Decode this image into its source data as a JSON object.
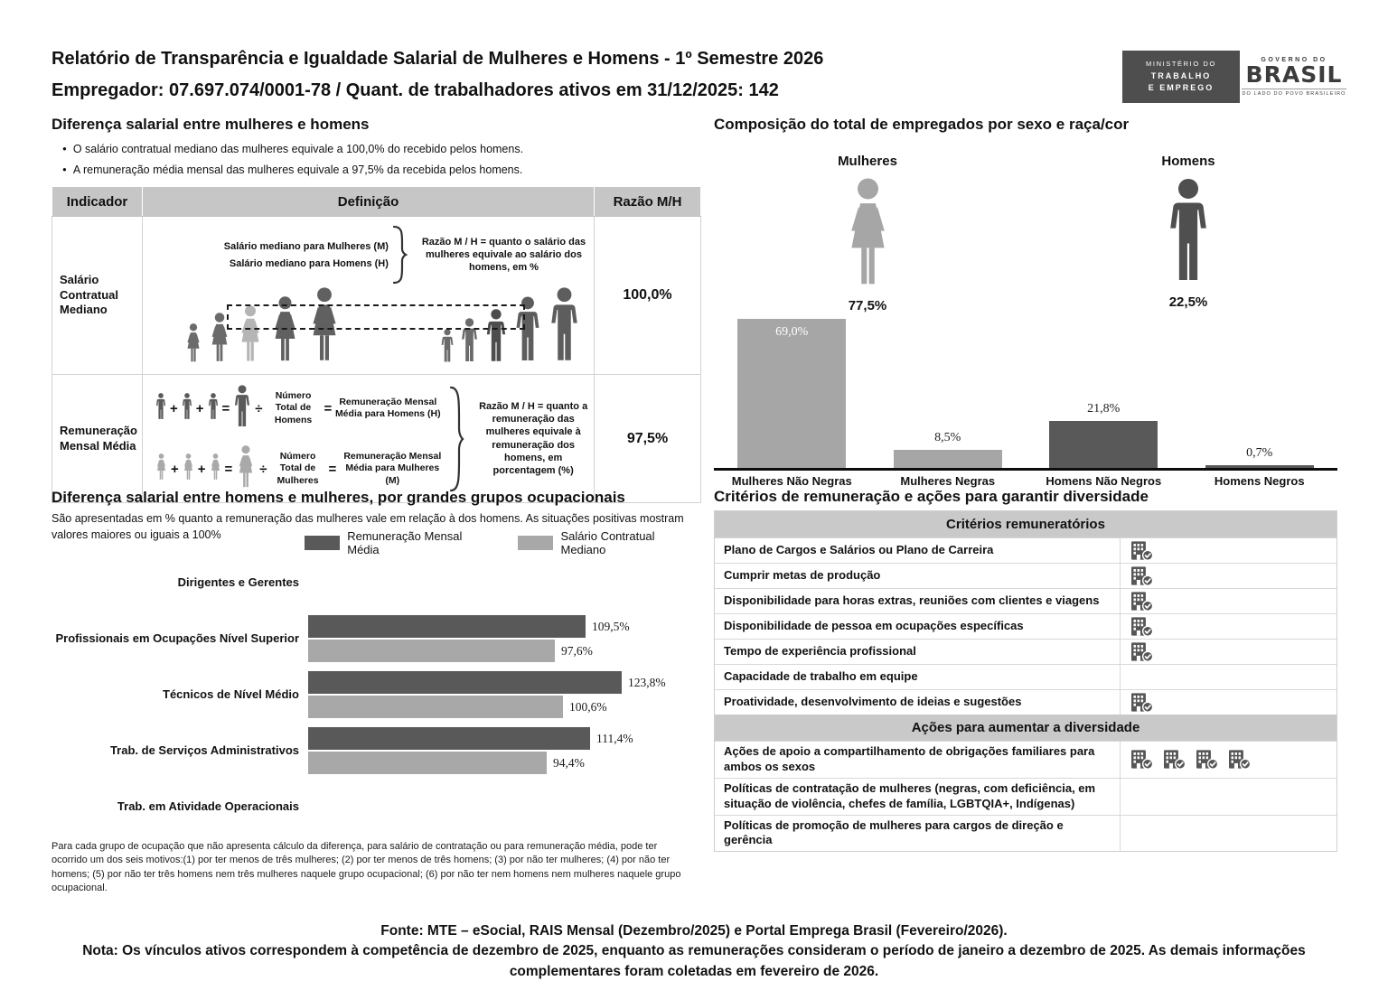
{
  "header": {
    "title_line1": "Relatório de Transparência e Igualdade Salarial de Mulheres e Homens - 1º Semestre 2026",
    "title_line2": "Empregador: 07.697.074/0001-78 / Quant. de trabalhadores ativos em 31/12/2025: 142",
    "logo_mte": {
      "line1": "MINISTÉRIO DO",
      "line2": "TRABALHO",
      "line3": "E EMPREGO"
    },
    "logo_gov": {
      "top": "GOVERNO DO",
      "brand": "BRASIL",
      "bottom": "DO LADO DO POVO BRASILEIRO"
    }
  },
  "left": {
    "section1": {
      "title": "Diferença salarial entre mulheres e homens",
      "bullets": [
        "O salário contratual mediano das mulheres equivale a 100,0% do recebido pelos homens.",
        "A remuneração média mensal das mulheres equivale a 97,5% da recebida pelos homens."
      ],
      "table": {
        "headers": [
          "Indicador",
          "Definição",
          "Razão M/H"
        ],
        "rows": [
          {
            "indicator": "Salário Contratual Mediano",
            "def_lines": [
              "Salário mediano para Mulheres (M)",
              "Salário mediano para Homens (H)"
            ],
            "note": "Razão M / H = quanto o salário das mulheres equivale ao salário dos homens, em %",
            "ratio": "100,0%"
          },
          {
            "indicator": "Remuneração Mensal Média",
            "ops": {
              "plus": "+",
              "equals": "=",
              "divide": "÷"
            },
            "men_formula": {
              "divisor": "Número Total de Homens",
              "result": "Remuneração Mensal Média para Homens (H)"
            },
            "women_formula": {
              "divisor": "Número Total de Mulheres",
              "result": "Remuneração Mensal Média para Mulheres (M)"
            },
            "note": "Razão M / H = quanto a remuneração das mulheres equivale à remuneração dos homens, em porcentagem (%)",
            "ratio": "97,5%"
          }
        ]
      }
    },
    "section2": {
      "subtitle": "São apresentadas em % quanto a remuneração das mulheres vale em relação à dos homens. As situações positivas mostram valores maiores ou iguais a 100%",
      "footnote": "Para cada grupo de ocupação que não apresenta cálculo da diferença, para salário de contratação ou para remuneração média, pode ter ocorrido um dos seis motivos:(1) por ter menos de três mulheres; (2) por ter menos de três homens; (3) por não ter mulheres; (4) por não ter homens; (5) por não ter três homens nem três mulheres naquele grupo ocupacional; (6) por não ter nem homens nem mulheres naquele grupo ocupacional."
    }
  },
  "right": {
    "section2": {
      "title": "Critérios de remuneração e ações para garantir diversidade",
      "groups": [
        {
          "header": "Critérios remuneratórios",
          "rows": [
            {
              "label": "Plano de Cargos e Salários ou Plano de Carreira",
              "icons": 1
            },
            {
              "label": "Cumprir metas de produção",
              "icons": 1
            },
            {
              "label": "Disponibilidade para horas extras, reuniões com clientes e viagens",
              "icons": 1
            },
            {
              "label": "Disponibilidade de pessoa em ocupações específicas",
              "icons": 1
            },
            {
              "label": "Tempo de experiência profissional",
              "icons": 1
            },
            {
              "label": "Capacidade de trabalho em equipe",
              "icons": 0
            },
            {
              "label": "Proatividade, desenvolvimento de ideias e sugestões",
              "icons": 1
            }
          ]
        },
        {
          "header": "Ações para aumentar a diversidade",
          "rows": [
            {
              "label": "Ações de apoio a compartilhamento de obrigações familiares para ambos os sexos",
              "icons": 4
            },
            {
              "label": "Políticas de contratação de mulheres (negras, com deficiência, em situação de violência, chefes de família, LGBTQIA+, Indígenas)",
              "icons": 0
            },
            {
              "label": "Políticas de promoção de mulheres para cargos de direção e gerência",
              "icons": 0
            }
          ]
        }
      ]
    }
  },
  "footer": {
    "fonte": "Fonte: MTE – eSocial, RAIS Mensal (Dezembro/2025) e Portal Emprega Brasil (Fevereiro/2026).",
    "nota": "Nota: Os vínculos ativos correspondem à competência de dezembro de 2025, enquanto as remunerações consideram o período de janeiro a dezembro de 2025. As demais informações complementares foram coletadas em fevereiro de 2026."
  },
  "chart_data": [
    {
      "type": "bar",
      "title": "Composição do total de empregados por sexo e raça/cor",
      "categories": [
        "Mulheres Não Negras",
        "Mulheres Negras",
        "Homens Não Negros",
        "Homens Negros"
      ],
      "values": [
        69.0,
        8.5,
        21.8,
        0.7
      ],
      "labels": [
        "69,0%",
        "8,5%",
        "21,8%",
        "0,7%"
      ],
      "colors": [
        "#a6a6a6",
        "#a6a6a6",
        "#595959",
        "#595959"
      ],
      "annotations": [
        {
          "label": "Mulheres",
          "value": "77,5%"
        },
        {
          "label": "Homens",
          "value": "22,5%"
        }
      ],
      "ylim": [
        0,
        75
      ],
      "grid": false,
      "unit": "%"
    },
    {
      "type": "bar",
      "orientation": "horizontal",
      "title": "Diferença salarial entre homens e mulheres, por grandes grupos ocupacionais",
      "categories": [
        "Dirigentes e Gerentes",
        "Profissionais em Ocupações Nível Superior",
        "Técnicos de Nível Médio",
        "Trab. de Serviços Administrativos",
        "Trab. em Atividade Operacionais"
      ],
      "series": [
        {
          "name": "Remuneração Mensal Média",
          "color": "#595959",
          "values": [
            null,
            109.5,
            123.8,
            111.4,
            null
          ],
          "labels": [
            null,
            "109,5%",
            "123,8%",
            "111,4%",
            null
          ]
        },
        {
          "name": "Salário Contratual Mediano",
          "color": "#a8a8a8",
          "values": [
            null,
            97.6,
            100.6,
            94.4,
            null
          ],
          "labels": [
            null,
            "97,6%",
            "100,6%",
            "94,4%",
            null
          ]
        }
      ],
      "xlim": [
        0,
        140
      ],
      "grid": false,
      "legend_position": "top",
      "unit": "%"
    }
  ]
}
